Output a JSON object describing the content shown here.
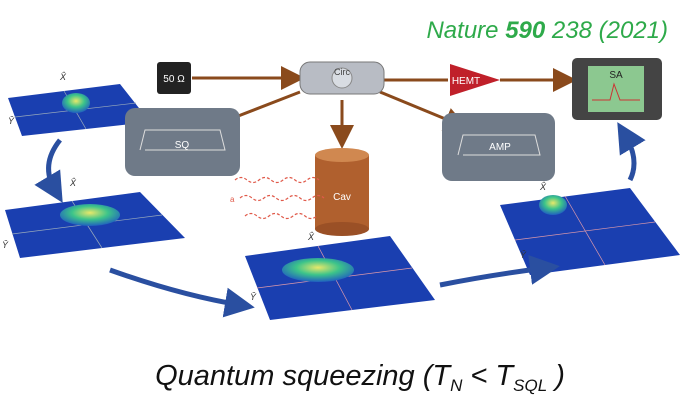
{
  "citation": {
    "journal": "Nature",
    "volume": "590",
    "pages": "238 (2021)"
  },
  "components": {
    "load": "50 Ω",
    "circulator": "Circ",
    "hemt": "HEMT",
    "analyzer": "SA",
    "squeezer": "SQ",
    "amplifier": "AMP",
    "cavity": "Cav",
    "axion": "a"
  },
  "phase_space": {
    "x_label": "X̂",
    "y_label": "Ŷ"
  },
  "caption": {
    "start": "Quantum squeezing (T",
    "sub1": "N",
    "mid": " < T",
    "sub2": "SQL",
    "end": " )"
  }
}
